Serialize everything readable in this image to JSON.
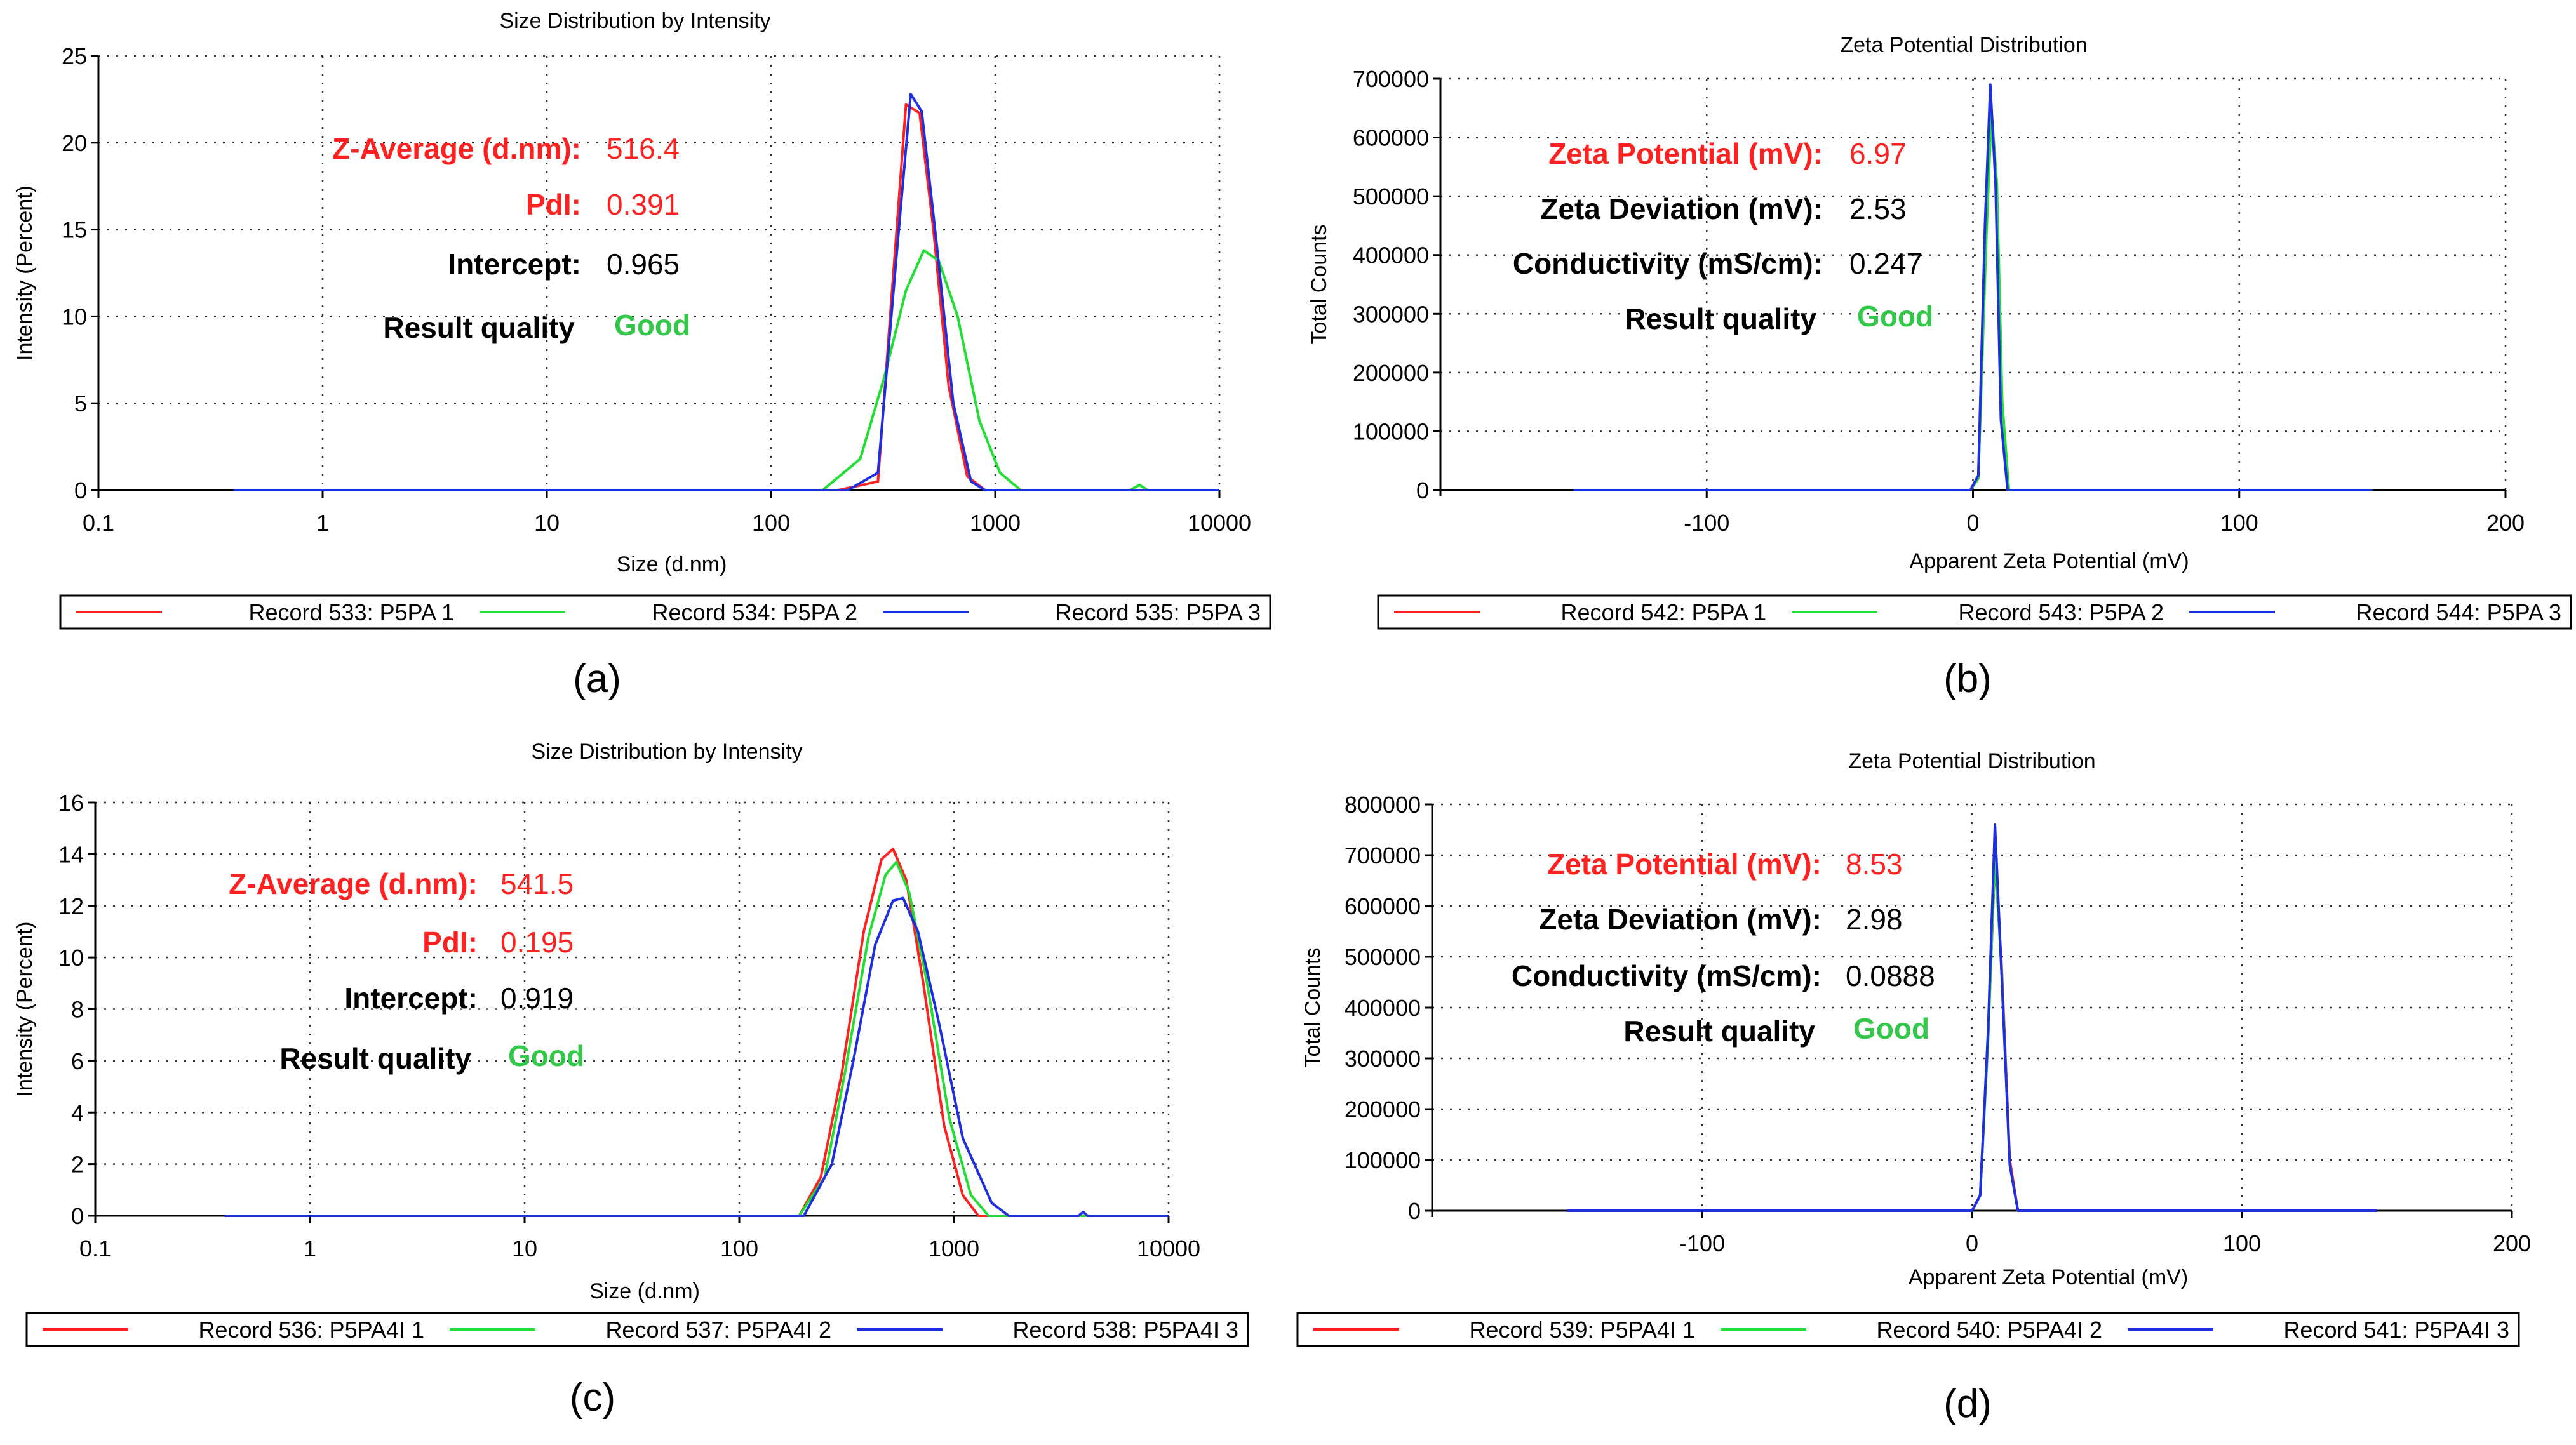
{
  "colors": {
    "red": "#ff2020",
    "green": "#22dd33",
    "blue": "#1f2fe0",
    "good": "#33c84a"
  },
  "chart_data": [
    {
      "panel": "(a)",
      "type": "line",
      "title": "Size Distribution by Intensity",
      "xlabel": "Size (d.nm)",
      "ylabel": "Intensity (Percent)",
      "xscale": "log",
      "xlim": [
        0.1,
        10000
      ],
      "ylim": [
        0,
        25
      ],
      "xticks": [
        0.1,
        1,
        10,
        100,
        1000,
        10000
      ],
      "xtick_labels": [
        "0.1",
        "1",
        "10",
        "100",
        "1000",
        "10000"
      ],
      "yticks": [
        0,
        5,
        10,
        15,
        20,
        25
      ],
      "ytick_labels": [
        "0",
        "5",
        "10",
        "15",
        "20",
        "25"
      ],
      "series": [
        {
          "name": "Record 533: P5PA 1",
          "color": "red",
          "points": [
            [
              0.4,
              0
            ],
            [
              200,
              0
            ],
            [
              300,
              0.5
            ],
            [
              340,
              10
            ],
            [
              400,
              22.2
            ],
            [
              460,
              21.7
            ],
            [
              530,
              15
            ],
            [
              620,
              6
            ],
            [
              750,
              0.8
            ],
            [
              900,
              0
            ],
            [
              10000,
              0
            ]
          ]
        },
        {
          "name": "Record 534: P5PA 2",
          "color": "green",
          "points": [
            [
              0.4,
              0
            ],
            [
              170,
              0
            ],
            [
              250,
              1.8
            ],
            [
              320,
              6.5
            ],
            [
              400,
              11.5
            ],
            [
              480,
              13.8
            ],
            [
              560,
              13.2
            ],
            [
              680,
              10
            ],
            [
              850,
              4
            ],
            [
              1050,
              1
            ],
            [
              1300,
              0
            ],
            [
              4000,
              0
            ],
            [
              4400,
              0.3
            ],
            [
              4800,
              0
            ],
            [
              10000,
              0
            ]
          ]
        },
        {
          "name": "Record 535: P5PA 3",
          "color": "blue",
          "points": [
            [
              0.4,
              0
            ],
            [
              220,
              0
            ],
            [
              300,
              1
            ],
            [
              360,
              13
            ],
            [
              420,
              22.8
            ],
            [
              470,
              21.8
            ],
            [
              550,
              14
            ],
            [
              650,
              5
            ],
            [
              780,
              0.5
            ],
            [
              900,
              0
            ],
            [
              10000,
              0
            ]
          ]
        }
      ],
      "annotations": [
        {
          "label": "Z-Average (d.nm):",
          "value": "516.4",
          "color": "red"
        },
        {
          "label": "PdI:",
          "value": "0.391",
          "color": "red"
        },
        {
          "label": "Intercept:",
          "value": "0.965",
          "color": "black"
        },
        {
          "label": "Result quality",
          "value": "Good",
          "color": "good"
        }
      ]
    },
    {
      "panel": "(b)",
      "type": "line",
      "title": "Zeta Potential Distribution",
      "xlabel": "Apparent Zeta Potential (mV)",
      "ylabel": "Total Counts",
      "xscale": "linear",
      "xlim": [
        -200,
        200
      ],
      "ylim": [
        0,
        700000
      ],
      "xticks": [
        -100,
        0,
        100,
        200
      ],
      "xtick_labels": [
        "-100",
        "0",
        "100",
        "200"
      ],
      "yticks": [
        0,
        100000,
        200000,
        300000,
        400000,
        500000,
        600000,
        700000
      ],
      "ytick_labels": [
        "0",
        "100000",
        "200000",
        "300000",
        "400000",
        "500000",
        "600000",
        "700000"
      ],
      "series": [
        {
          "name": "Record 542: P5PA 1",
          "color": "red",
          "points": [
            [
              -150,
              0
            ],
            [
              -1,
              0
            ],
            [
              2,
              20000
            ],
            [
              4.5,
              400000
            ],
            [
              6.5,
              660000
            ],
            [
              8.5,
              550000
            ],
            [
              10.5,
              150000
            ],
            [
              13,
              0
            ],
            [
              150,
              0
            ]
          ]
        },
        {
          "name": "Record 543: P5PA 2",
          "color": "green",
          "points": [
            [
              -150,
              0
            ],
            [
              -1,
              0
            ],
            [
              2,
              20000
            ],
            [
              5,
              430000
            ],
            [
              7,
              645000
            ],
            [
              9,
              520000
            ],
            [
              11,
              150000
            ],
            [
              13.5,
              0
            ],
            [
              150,
              0
            ]
          ]
        },
        {
          "name": "Record 544: P5PA 3",
          "color": "blue",
          "points": [
            [
              -150,
              0
            ],
            [
              -1,
              0
            ],
            [
              2,
              25000
            ],
            [
              4.5,
              450000
            ],
            [
              6.5,
              690000
            ],
            [
              8.5,
              520000
            ],
            [
              10.5,
              120000
            ],
            [
              13,
              0
            ],
            [
              150,
              0
            ]
          ]
        }
      ],
      "annotations": [
        {
          "label": "Zeta Potential (mV):",
          "value": "6.97",
          "color": "red"
        },
        {
          "label": "Zeta Deviation (mV):",
          "value": "2.53",
          "color": "black"
        },
        {
          "label": "Conductivity (mS/cm):",
          "value": "0.247",
          "color": "black"
        },
        {
          "label": "Result quality",
          "value": "Good",
          "color": "good"
        }
      ]
    },
    {
      "panel": "(c)",
      "type": "line",
      "title": "Size Distribution by Intensity",
      "xlabel": "Size (d.nm)",
      "ylabel": "Intensity (Percent)",
      "xscale": "log",
      "xlim": [
        0.1,
        10000
      ],
      "ylim": [
        0,
        16
      ],
      "xticks": [
        0.1,
        1,
        10,
        100,
        1000,
        10000
      ],
      "xtick_labels": [
        "0.1",
        "1",
        "10",
        "100",
        "1000",
        "10000"
      ],
      "yticks": [
        0,
        2,
        4,
        6,
        8,
        10,
        12,
        14,
        16
      ],
      "ytick_labels": [
        "0",
        "2",
        "4",
        "6",
        "8",
        "10",
        "12",
        "14",
        "16"
      ],
      "series": [
        {
          "name": "Record 536: P5PA4I 1",
          "color": "red",
          "points": [
            [
              0.4,
              0
            ],
            [
              190,
              0
            ],
            [
              240,
              1.5
            ],
            [
              300,
              5.5
            ],
            [
              380,
              11
            ],
            [
              460,
              13.8
            ],
            [
              520,
              14.2
            ],
            [
              600,
              13
            ],
            [
              720,
              9
            ],
            [
              900,
              3.5
            ],
            [
              1100,
              0.8
            ],
            [
              1300,
              0
            ],
            [
              10000,
              0
            ]
          ]
        },
        {
          "name": "Record 537: P5PA4I 2",
          "color": "green",
          "points": [
            [
              0.4,
              0
            ],
            [
              190,
              0
            ],
            [
              250,
              1.5
            ],
            [
              310,
              5.5
            ],
            [
              400,
              10.8
            ],
            [
              480,
              13.2
            ],
            [
              540,
              13.7
            ],
            [
              620,
              12.5
            ],
            [
              750,
              9
            ],
            [
              950,
              3.8
            ],
            [
              1200,
              0.8
            ],
            [
              1450,
              0
            ],
            [
              10000,
              0
            ]
          ]
        },
        {
          "name": "Record 538: P5PA4I 3",
          "color": "blue",
          "points": [
            [
              0.4,
              0
            ],
            [
              200,
              0
            ],
            [
              270,
              2
            ],
            [
              340,
              6
            ],
            [
              430,
              10.5
            ],
            [
              520,
              12.2
            ],
            [
              580,
              12.3
            ],
            [
              680,
              11
            ],
            [
              850,
              7.5
            ],
            [
              1100,
              3
            ],
            [
              1500,
              0.5
            ],
            [
              1800,
              0
            ],
            [
              3800,
              0
            ],
            [
              4000,
              0.15
            ],
            [
              4200,
              0
            ],
            [
              10000,
              0
            ]
          ]
        }
      ],
      "annotations": [
        {
          "label": "Z-Average (d.nm):",
          "value": "541.5",
          "color": "red"
        },
        {
          "label": "PdI:",
          "value": "0.195",
          "color": "red"
        },
        {
          "label": "Intercept:",
          "value": "0.919",
          "color": "black"
        },
        {
          "label": "Result quality",
          "value": "Good",
          "color": "good"
        }
      ]
    },
    {
      "panel": "(d)",
      "type": "line",
      "title": "Zeta Potential Distribution",
      "xlabel": "Apparent Zeta Potential (mV)",
      "ylabel": "Total Counts",
      "xscale": "linear",
      "xlim": [
        -200,
        200
      ],
      "ylim": [
        0,
        800000
      ],
      "xticks": [
        -100,
        0,
        100,
        200
      ],
      "xtick_labels": [
        "-100",
        "0",
        "100",
        "200"
      ],
      "yticks": [
        0,
        100000,
        200000,
        300000,
        400000,
        500000,
        600000,
        700000,
        800000
      ],
      "ytick_labels": [
        "0",
        "100000",
        "200000",
        "300000",
        "400000",
        "500000",
        "600000",
        "700000",
        "800000"
      ],
      "series": [
        {
          "name": "Record 539: P5PA4I 1",
          "color": "red",
          "points": [
            [
              -150,
              0
            ],
            [
              0,
              0
            ],
            [
              3,
              30000
            ],
            [
              6,
              350000
            ],
            [
              8.5,
              690000
            ],
            [
              11,
              480000
            ],
            [
              14,
              100000
            ],
            [
              17,
              0
            ],
            [
              150,
              0
            ]
          ]
        },
        {
          "name": "Record 540: P5PA4I 2",
          "color": "green",
          "points": [
            [
              -150,
              0
            ],
            [
              0,
              0
            ],
            [
              3,
              30000
            ],
            [
              6,
              340000
            ],
            [
              8.5,
              700000
            ],
            [
              11,
              470000
            ],
            [
              14,
              90000
            ],
            [
              17,
              0
            ],
            [
              150,
              0
            ]
          ]
        },
        {
          "name": "Record 541: P5PA4I 3",
          "color": "blue",
          "points": [
            [
              -150,
              0
            ],
            [
              0,
              0
            ],
            [
              3,
              30000
            ],
            [
              6,
              360000
            ],
            [
              8.5,
              760000
            ],
            [
              11,
              460000
            ],
            [
              14,
              90000
            ],
            [
              17,
              0
            ],
            [
              150,
              0
            ]
          ]
        }
      ],
      "annotations": [
        {
          "label": "Zeta Potential (mV):",
          "value": "8.53",
          "color": "red"
        },
        {
          "label": "Zeta Deviation (mV):",
          "value": "2.98",
          "color": "black"
        },
        {
          "label": "Conductivity (mS/cm):",
          "value": "0.0888",
          "color": "black"
        },
        {
          "label": "Result quality",
          "value": "Good",
          "color": "good"
        }
      ]
    }
  ]
}
